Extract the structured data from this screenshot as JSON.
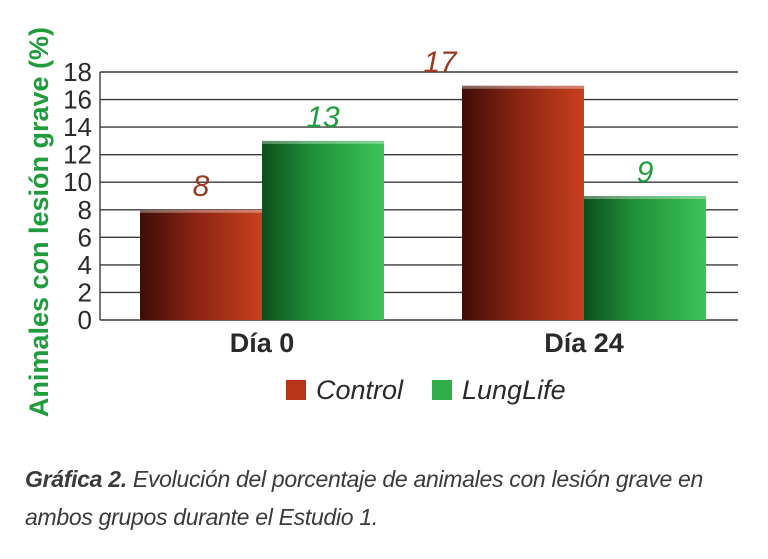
{
  "chart_data": {
    "type": "bar",
    "ylabel": "Animales con lesión grave (%)",
    "categories": [
      "Día 0",
      "Día 24"
    ],
    "series": [
      {
        "name": "Control",
        "values": [
          8,
          17
        ],
        "labels": [
          "8",
          "17"
        ],
        "color": "#b8341a"
      },
      {
        "name": "LungLife",
        "values": [
          13,
          9
        ],
        "labels": [
          "13",
          "9"
        ],
        "color": "#2fae4a"
      }
    ],
    "ylim": [
      0,
      18
    ],
    "yticks": [
      0,
      2,
      4,
      6,
      8,
      10,
      12,
      14,
      16,
      18
    ],
    "grid": true,
    "legend": "bottom",
    "colors": {
      "axis_label": "#1f9c3c",
      "control_label": "#9b3a22",
      "lunglife_label": "#1f9c3c"
    }
  },
  "caption": {
    "title": "Gráfica 2.",
    "text": " Evolución del porcentaje de animales con lesión grave en ambos grupos durante el Estudio 1."
  }
}
